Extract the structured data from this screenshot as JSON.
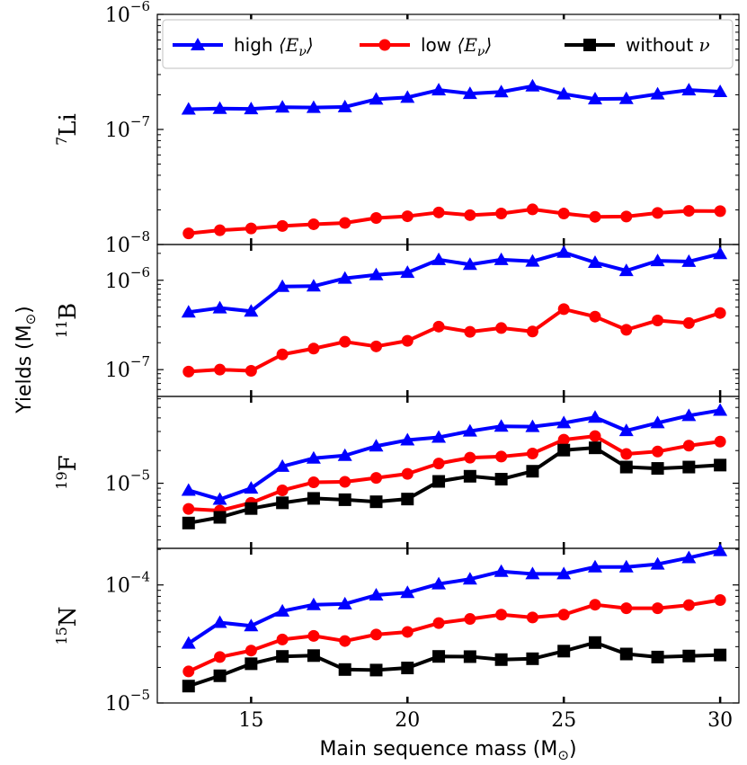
{
  "chart_data": {
    "type": "line",
    "x": [
      13,
      14,
      15,
      16,
      17,
      18,
      19,
      20,
      21,
      22,
      23,
      24,
      25,
      26,
      27,
      28,
      29,
      30
    ],
    "xlabel": "Main sequence mass (M",
    "xlabel_sub": "⊙",
    "xlabel_close": ")",
    "ylabel": "Yields (M",
    "ylabel_sub": "⊙",
    "ylabel_close": ")",
    "xlim": [
      12.0,
      30.6
    ],
    "xticks": [
      15,
      20,
      25,
      30
    ],
    "legend": {
      "position": "top",
      "entries": [
        {
          "key": "high",
          "text": "high ",
          "math": "⟨E",
          "sub": "ν",
          "close": "⟩"
        },
        {
          "key": "low",
          "text": "low ",
          "math": "⟨E",
          "sub": "ν",
          "close": "⟩"
        },
        {
          "key": "without",
          "text": "without ",
          "math": "ν",
          "sub": "",
          "close": ""
        }
      ]
    },
    "series_styles": {
      "high": {
        "color": "#0000ff",
        "marker": "triangle"
      },
      "low": {
        "color": "#ff0000",
        "marker": "circle"
      },
      "without": {
        "color": "#000000",
        "marker": "square"
      }
    },
    "panels": [
      {
        "isotope": "Li",
        "mass_number": "7",
        "ylim_log": [
          -8,
          -6
        ],
        "yticks": [
          {
            "exp": -8,
            "label": "10",
            "sup": "−8"
          },
          {
            "exp": -7,
            "label": "10",
            "sup": "−7"
          },
          {
            "exp": -6,
            "label": "10",
            "sup": "−6"
          }
        ],
        "series": [
          {
            "name": "high",
            "values": [
              1.5e-07,
              1.52e-07,
              1.51e-07,
              1.56e-07,
              1.55e-07,
              1.57e-07,
              1.83e-07,
              1.9e-07,
              2.2e-07,
              2.05e-07,
              2.12e-07,
              2.38e-07,
              2.03e-07,
              1.84e-07,
              1.85e-07,
              2.03e-07,
              2.2e-07,
              2.13e-07
            ]
          },
          {
            "name": "low",
            "values": [
              1.25e-08,
              1.33e-08,
              1.38e-08,
              1.45e-08,
              1.5e-08,
              1.54e-08,
              1.7e-08,
              1.76e-08,
              1.9e-08,
              1.8e-08,
              1.86e-08,
              2.02e-08,
              1.86e-08,
              1.74e-08,
              1.75e-08,
              1.88e-08,
              1.96e-08,
              1.95e-08
            ]
          }
        ]
      },
      {
        "isotope": "B",
        "mass_number": "11",
        "ylim_log": [
          -7.3,
          -5.6
        ],
        "yticks": [
          {
            "exp": -7,
            "label": "10",
            "sup": "−7"
          },
          {
            "exp": -6,
            "label": "10",
            "sup": "−6"
          }
        ],
        "series": [
          {
            "name": "high",
            "values": [
              4.4e-07,
              4.9e-07,
              4.5e-07,
              8.5e-07,
              8.6e-07,
              1.05e-06,
              1.15e-06,
              1.22e-06,
              1.7e-06,
              1.5e-06,
              1.7e-06,
              1.63e-06,
              2.05e-06,
              1.58e-06,
              1.28e-06,
              1.65e-06,
              1.62e-06,
              1.98e-06
            ]
          },
          {
            "name": "low",
            "values": [
              9.5e-08,
              1e-07,
              9.7e-08,
              1.48e-07,
              1.72e-07,
              2.05e-07,
              1.82e-07,
              2.1e-07,
              3.03e-07,
              2.65e-07,
              2.92e-07,
              2.67e-07,
              4.75e-07,
              3.92e-07,
              2.79e-07,
              3.55e-07,
              3.32e-07,
              4.3e-07
            ]
          }
        ]
      },
      {
        "isotope": "F",
        "mass_number": "19",
        "ylim_log": [
          -5.6,
          -4.2
        ],
        "yticks": [
          {
            "exp": -5,
            "label": "10",
            "sup": "−5"
          }
        ],
        "series": [
          {
            "name": "high",
            "values": [
              8.6e-06,
              7.1e-06,
              9e-06,
              1.43e-05,
              1.7e-05,
              1.8e-05,
              2.2e-05,
              2.5e-05,
              2.65e-05,
              3.02e-05,
              3.35e-05,
              3.32e-05,
              3.6e-05,
              4.05e-05,
              3.05e-05,
              3.6e-05,
              4.2e-05,
              4.7e-05
            ]
          },
          {
            "name": "low",
            "values": [
              5.8e-06,
              5.6e-06,
              6.6e-06,
              8.6e-06,
              1.02e-05,
              1.03e-05,
              1.12e-05,
              1.22e-05,
              1.52e-05,
              1.72e-05,
              1.76e-05,
              1.88e-05,
              2.52e-05,
              2.72e-05,
              1.86e-05,
              1.96e-05,
              2.22e-05,
              2.42e-05
            ]
          },
          {
            "name": "without",
            "values": [
              4.3e-06,
              4.85e-06,
              5.85e-06,
              6.6e-06,
              7.25e-06,
              7.05e-06,
              6.75e-06,
              7.15e-06,
              1.04e-05,
              1.16e-05,
              1.09e-05,
              1.29e-05,
              2.02e-05,
              2.12e-05,
              1.41e-05,
              1.37e-05,
              1.41e-05,
              1.47e-05
            ]
          }
        ]
      },
      {
        "isotope": "N",
        "mass_number": "15",
        "ylim_log": [
          -5.0,
          -3.69
        ],
        "yticks": [
          {
            "exp": -5,
            "label": "10",
            "sup": "−5"
          },
          {
            "exp": -4,
            "label": "10",
            "sup": "−4"
          }
        ],
        "series": [
          {
            "name": "high",
            "values": [
              3.2e-05,
              4.8e-05,
              4.5e-05,
              6e-05,
              6.8e-05,
              6.9e-05,
              8.2e-05,
              8.6e-05,
              0.000102,
              0.000112,
              0.00013,
              0.000124,
              0.000124,
              0.000142,
              0.000142,
              0.00015,
              0.00017,
              0.000195
            ]
          },
          {
            "name": "low",
            "values": [
              1.85e-05,
              2.45e-05,
              2.78e-05,
              3.45e-05,
              3.7e-05,
              3.35e-05,
              3.8e-05,
              4e-05,
              4.75e-05,
              5.15e-05,
              5.6e-05,
              5.3e-05,
              5.6e-05,
              6.8e-05,
              6.35e-05,
              6.35e-05,
              6.75e-05,
              7.45e-05
            ]
          },
          {
            "name": "without",
            "values": [
              1.39e-05,
              1.7e-05,
              2.15e-05,
              2.48e-05,
              2.52e-05,
              1.92e-05,
              1.9e-05,
              1.98e-05,
              2.48e-05,
              2.47e-05,
              2.33e-05,
              2.37e-05,
              2.75e-05,
              3.25e-05,
              2.6e-05,
              2.45e-05,
              2.5e-05,
              2.55e-05
            ]
          }
        ]
      }
    ]
  }
}
